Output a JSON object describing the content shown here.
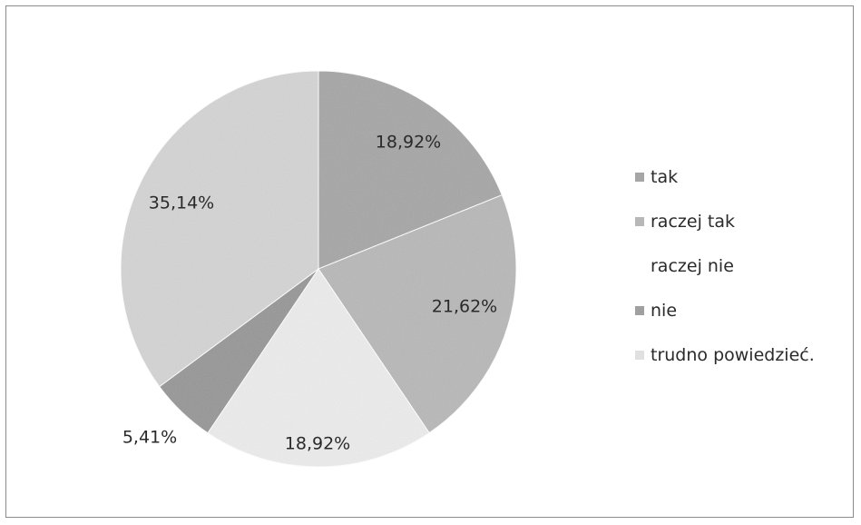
{
  "chart_data": {
    "type": "pie",
    "title": "",
    "slices": [
      {
        "label": "tak",
        "value": 18.92,
        "display": "18,92%",
        "color": "#a6a6a6"
      },
      {
        "label": "raczej tak",
        "value": 21.62,
        "display": "21,62%",
        "color": "#b8b8b8"
      },
      {
        "label": "raczej nie",
        "value": 18.92,
        "display": "18,92%",
        "color": "#ececec"
      },
      {
        "label": "nie",
        "value": 5.41,
        "display": "5,41%",
        "color": "#969696"
      },
      {
        "label": "trudno powiedzieć.",
        "value": 35.14,
        "display": "35,14%",
        "color": "#d4d4d4"
      }
    ],
    "start_angle_deg": 0,
    "direction": "clockwise",
    "legend_position": "right"
  },
  "legend": {
    "items": [
      {
        "label": "tak",
        "color": "#a6a6a6"
      },
      {
        "label": "raczej tak",
        "color": "#b8b8b8"
      },
      {
        "label": "raczej nie",
        "color": "#ffffff"
      },
      {
        "label": "nie",
        "color": "#a0a0a0"
      },
      {
        "label": "trudno powiedzieć.",
        "color": "#e0e0e0"
      }
    ]
  }
}
